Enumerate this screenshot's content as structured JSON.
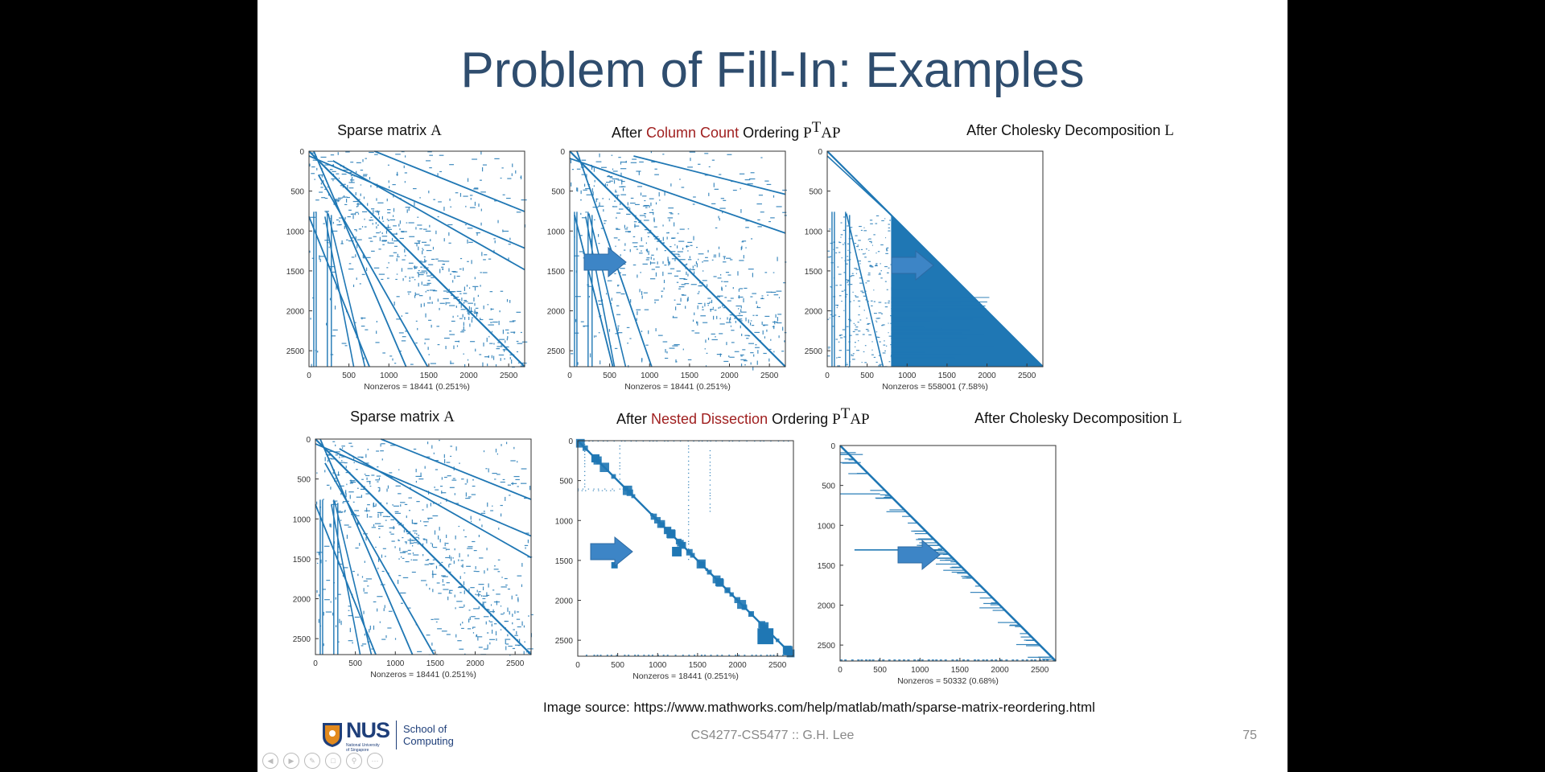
{
  "slide": {
    "title": "Problem of Fill-In: Examples",
    "source_label": "Image source: https://www.mathworks.com/help/matlab/math/sparse-matrix-reordering.html",
    "footer": "CS4277-CS5477 :: G.H. Lee",
    "page_number": "75",
    "logo": {
      "name": "NUS",
      "line1": "National University",
      "line2": "of Singapore",
      "school_line1": "School of",
      "school_line2": "Computing"
    }
  },
  "captions": {
    "r1_left": "Sparse matrix ",
    "r1_left_math": "A",
    "r1_mid_pre": "After ",
    "r1_mid_red": "Column Count",
    "r1_mid_post": " Ordering ",
    "r1_mid_math1": "P",
    "r1_mid_sup": "T",
    "r1_mid_math2": "AP",
    "r1_right": "After Cholesky Decomposition ",
    "r1_right_math": "L",
    "r2_left": "Sparse matrix ",
    "r2_left_math": "A",
    "r2_mid_pre": "After ",
    "r2_mid_red": "Nested Dissection",
    "r2_mid_post": " Ordering ",
    "r2_mid_math1": "P",
    "r2_mid_sup": "T",
    "r2_mid_math2": "AP",
    "r2_right": "After Cholesky Decomposition ",
    "r2_right_math": "L"
  },
  "colors": {
    "title": "#2f4d6e",
    "plot_blue": "#1f77b4",
    "caption_red": "#a02020",
    "arrow": "#3d85c6"
  },
  "controls": [
    "prev-icon",
    "next-icon",
    "pen-icon",
    "copy-icon",
    "zoom-icon",
    "more-icon"
  ],
  "chart_data": [
    {
      "id": "p1",
      "type": "heatmap",
      "pattern": "original",
      "xlim": [
        0,
        2700
      ],
      "ylim": [
        0,
        2700
      ],
      "xticks": [
        0,
        500,
        1000,
        1500,
        2000,
        2500
      ],
      "yticks": [
        0,
        500,
        1000,
        1500,
        2000,
        2500
      ],
      "xtick_labels": [
        "0",
        "500",
        "1000",
        "1500",
        "2000",
        "2500"
      ],
      "ytick_labels": [
        "0",
        "500",
        "1000",
        "1500",
        "2000",
        "2500"
      ],
      "xlabel": "Nonzeros = 18441 (0.251%)"
    },
    {
      "id": "p2",
      "type": "heatmap",
      "pattern": "colcount",
      "xlim": [
        0,
        2700
      ],
      "ylim": [
        0,
        2700
      ],
      "xticks": [
        0,
        500,
        1000,
        1500,
        2000,
        2500
      ],
      "yticks": [
        0,
        500,
        1000,
        1500,
        2000,
        2500
      ],
      "xtick_labels": [
        "0",
        "500",
        "1000",
        "1500",
        "2000",
        "2500"
      ],
      "ytick_labels": [
        "0",
        "500",
        "1000",
        "1500",
        "2000",
        "2500"
      ],
      "xlabel": "Nonzeros = 18441 (0.251%)"
    },
    {
      "id": "p3",
      "type": "heatmap",
      "pattern": "chol_colcount",
      "xlim": [
        0,
        2700
      ],
      "ylim": [
        0,
        2700
      ],
      "xticks": [
        0,
        500,
        1000,
        1500,
        2000,
        2500
      ],
      "yticks": [
        0,
        500,
        1000,
        1500,
        2000,
        2500
      ],
      "xtick_labels": [
        "0",
        "500",
        "1000",
        "1500",
        "2000",
        "2500"
      ],
      "ytick_labels": [
        "0",
        "500",
        "1000",
        "1500",
        "2000",
        "2500"
      ],
      "xlabel": "Nonzeros = 558001 (7.58%)"
    },
    {
      "id": "p4",
      "type": "heatmap",
      "pattern": "original",
      "xlim": [
        0,
        2700
      ],
      "ylim": [
        0,
        2700
      ],
      "xticks": [
        0,
        500,
        1000,
        1500,
        2000,
        2500
      ],
      "yticks": [
        0,
        500,
        1000,
        1500,
        2000,
        2500
      ],
      "xtick_labels": [
        "0",
        "500",
        "1000",
        "1500",
        "2000",
        "2500"
      ],
      "ytick_labels": [
        "0",
        "500",
        "1000",
        "1500",
        "2000",
        "2500"
      ],
      "xlabel": "Nonzeros = 18441 (0.251%)"
    },
    {
      "id": "p5",
      "type": "heatmap",
      "pattern": "nested",
      "xlim": [
        0,
        2700
      ],
      "ylim": [
        0,
        2700
      ],
      "xticks": [
        0,
        500,
        1000,
        1500,
        2000,
        2500
      ],
      "yticks": [
        0,
        500,
        1000,
        1500,
        2000,
        2500
      ],
      "xtick_labels": [
        "0",
        "500",
        "1000",
        "1500",
        "2000",
        "2500"
      ],
      "ytick_labels": [
        "0",
        "500",
        "1000",
        "1500",
        "2000",
        "2500"
      ],
      "xlabel": "Nonzeros = 18441 (0.251%)"
    },
    {
      "id": "p6",
      "type": "heatmap",
      "pattern": "chol_nested",
      "xlim": [
        0,
        2700
      ],
      "ylim": [
        0,
        2700
      ],
      "xticks": [
        0,
        500,
        1000,
        1500,
        2000,
        2500
      ],
      "yticks": [
        0,
        500,
        1000,
        1500,
        2000,
        2500
      ],
      "xtick_labels": [
        "0",
        "500",
        "1000",
        "1500",
        "2000",
        "2500"
      ],
      "ytick_labels": [
        "0",
        "500",
        "1000",
        "1500",
        "2000",
        "2500"
      ],
      "xlabel": "Nonzeros = 50332 (0.68%)"
    }
  ]
}
